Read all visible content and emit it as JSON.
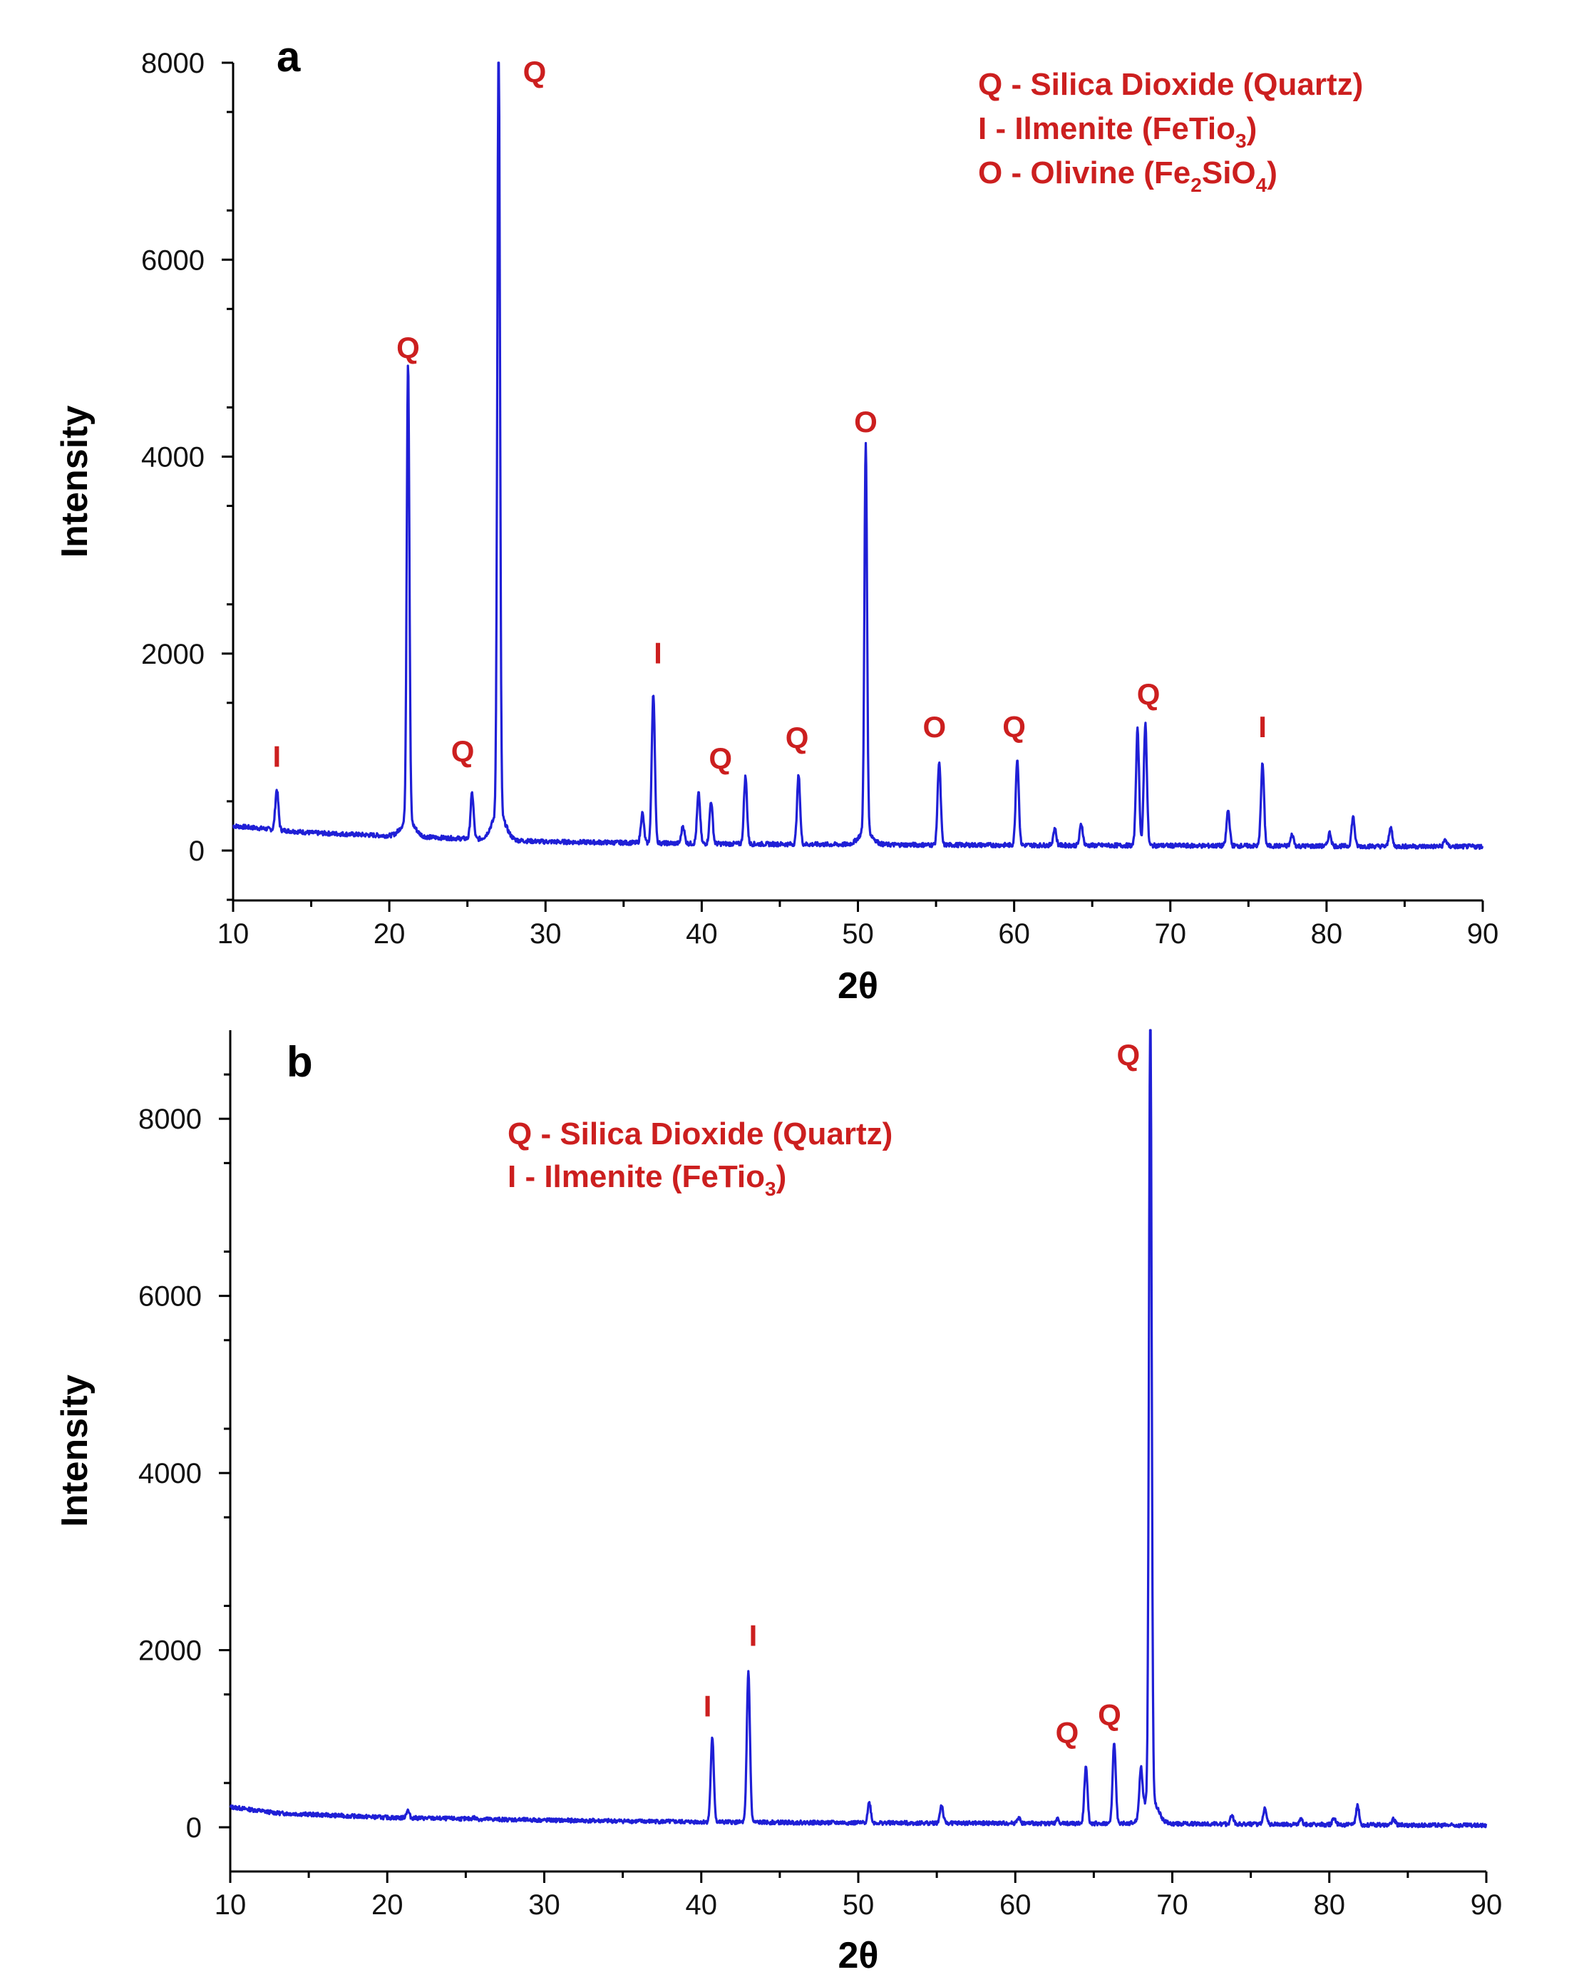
{
  "colors": {
    "series": "#1f1fd6",
    "annotation": "#cc1f1f",
    "axis": "#000000"
  },
  "chart_data": [
    {
      "type": "line",
      "panel": "a",
      "xlabel": "2θ",
      "ylabel": "Intensity",
      "xlim": [
        10,
        90
      ],
      "ylim": [
        -500,
        8000
      ],
      "xticks": [
        "10",
        "20",
        "30",
        "40",
        "50",
        "60",
        "70",
        "80",
        "90"
      ],
      "yticks": [
        "0",
        "2000",
        "4000",
        "6000",
        "8000"
      ],
      "legend": [
        {
          "prefix": "Q - Silica Dioxide (Quartz)",
          "sub": "",
          "suffix": ""
        },
        {
          "prefix": "I - Ilmenite (FeTio",
          "sub": "3",
          "suffix": ")"
        },
        {
          "prefix": "O - Olivine (Fe",
          "sub": "2",
          "mid": "SiO",
          "sub2": "4",
          "suffix": ")"
        }
      ],
      "baseline": [
        [
          10,
          250
        ],
        [
          15,
          180
        ],
        [
          20,
          150
        ],
        [
          25,
          120
        ],
        [
          30,
          90
        ],
        [
          40,
          70
        ],
        [
          50,
          60
        ],
        [
          60,
          55
        ],
        [
          70,
          50
        ],
        [
          80,
          45
        ],
        [
          90,
          40
        ]
      ],
      "peaks": [
        {
          "x": 12.8,
          "y": 620
        },
        {
          "x": 21.2,
          "y": 4800
        },
        {
          "x": 25.3,
          "y": 580
        },
        {
          "x": 27.0,
          "y": 8000
        },
        {
          "x": 36.2,
          "y": 380
        },
        {
          "x": 36.9,
          "y": 1600
        },
        {
          "x": 38.8,
          "y": 250
        },
        {
          "x": 39.8,
          "y": 580
        },
        {
          "x": 40.6,
          "y": 500
        },
        {
          "x": 42.8,
          "y": 750
        },
        {
          "x": 46.2,
          "y": 760
        },
        {
          "x": 50.5,
          "y": 4000
        },
        {
          "x": 55.2,
          "y": 900
        },
        {
          "x": 60.2,
          "y": 930
        },
        {
          "x": 62.6,
          "y": 220
        },
        {
          "x": 64.3,
          "y": 270
        },
        {
          "x": 67.9,
          "y": 1230
        },
        {
          "x": 68.4,
          "y": 1290
        },
        {
          "x": 73.7,
          "y": 410
        },
        {
          "x": 75.9,
          "y": 880
        },
        {
          "x": 77.8,
          "y": 160
        },
        {
          "x": 80.2,
          "y": 180
        },
        {
          "x": 81.7,
          "y": 340
        },
        {
          "x": 84.1,
          "y": 240
        },
        {
          "x": 87.6,
          "y": 110
        }
      ],
      "annotations": [
        {
          "text": "I",
          "x": 12.8,
          "y": 850
        },
        {
          "text": "Q",
          "x": 21.2,
          "y": 5000
        },
        {
          "text": "Q",
          "x": 24.7,
          "y": 900
        },
        {
          "text": "Q",
          "x": 29.3,
          "y": 7800
        },
        {
          "text": "I",
          "x": 37.2,
          "y": 1900
        },
        {
          "text": "Q",
          "x": 41.2,
          "y": 830
        },
        {
          "text": "Q",
          "x": 46.1,
          "y": 1040
        },
        {
          "text": "O",
          "x": 50.5,
          "y": 4250
        },
        {
          "text": "O",
          "x": 54.9,
          "y": 1150
        },
        {
          "text": "Q",
          "x": 60.0,
          "y": 1150
        },
        {
          "text": "Q",
          "x": 68.6,
          "y": 1480
        },
        {
          "text": "I",
          "x": 75.9,
          "y": 1150
        }
      ]
    },
    {
      "type": "line",
      "panel": "b",
      "xlabel": "2θ",
      "ylabel": "Intensity",
      "xlim": [
        10,
        90
      ],
      "ylim": [
        -500,
        9000
      ],
      "xticks": [
        "10",
        "20",
        "30",
        "40",
        "50",
        "60",
        "70",
        "80",
        "90"
      ],
      "yticks": [
        "0",
        "2000",
        "4000",
        "6000",
        "8000"
      ],
      "legend": [
        {
          "prefix": "Q - Silica Dioxide (Quartz)",
          "sub": "",
          "suffix": ""
        },
        {
          "prefix": "I - Ilmenite (FeTio",
          "sub": "3",
          "suffix": ")"
        }
      ],
      "baseline": [
        [
          10,
          230
        ],
        [
          13,
          160
        ],
        [
          20,
          110
        ],
        [
          30,
          80
        ],
        [
          40,
          60
        ],
        [
          50,
          50
        ],
        [
          60,
          45
        ],
        [
          70,
          40
        ],
        [
          80,
          30
        ],
        [
          90,
          20
        ]
      ],
      "peaks": [
        {
          "x": 21.3,
          "y": 190
        },
        {
          "x": 25.5,
          "y": 110
        },
        {
          "x": 40.7,
          "y": 1000
        },
        {
          "x": 43.0,
          "y": 1760
        },
        {
          "x": 50.7,
          "y": 280
        },
        {
          "x": 55.3,
          "y": 250
        },
        {
          "x": 60.2,
          "y": 110
        },
        {
          "x": 62.7,
          "y": 90
        },
        {
          "x": 64.5,
          "y": 700
        },
        {
          "x": 66.3,
          "y": 960
        },
        {
          "x": 68.0,
          "y": 560
        },
        {
          "x": 68.6,
          "y": 9000
        },
        {
          "x": 73.8,
          "y": 140
        },
        {
          "x": 75.9,
          "y": 230
        },
        {
          "x": 78.2,
          "y": 90
        },
        {
          "x": 80.3,
          "y": 110
        },
        {
          "x": 81.8,
          "y": 240
        },
        {
          "x": 84.1,
          "y": 90
        }
      ],
      "annotations": [
        {
          "text": "Q",
          "x": 67.2,
          "y": 8600
        },
        {
          "text": "I",
          "x": 40.4,
          "y": 1250
        },
        {
          "text": "I",
          "x": 43.3,
          "y": 2050
        },
        {
          "text": "Q",
          "x": 63.3,
          "y": 950
        },
        {
          "text": "Q",
          "x": 66.0,
          "y": 1150
        }
      ]
    }
  ]
}
